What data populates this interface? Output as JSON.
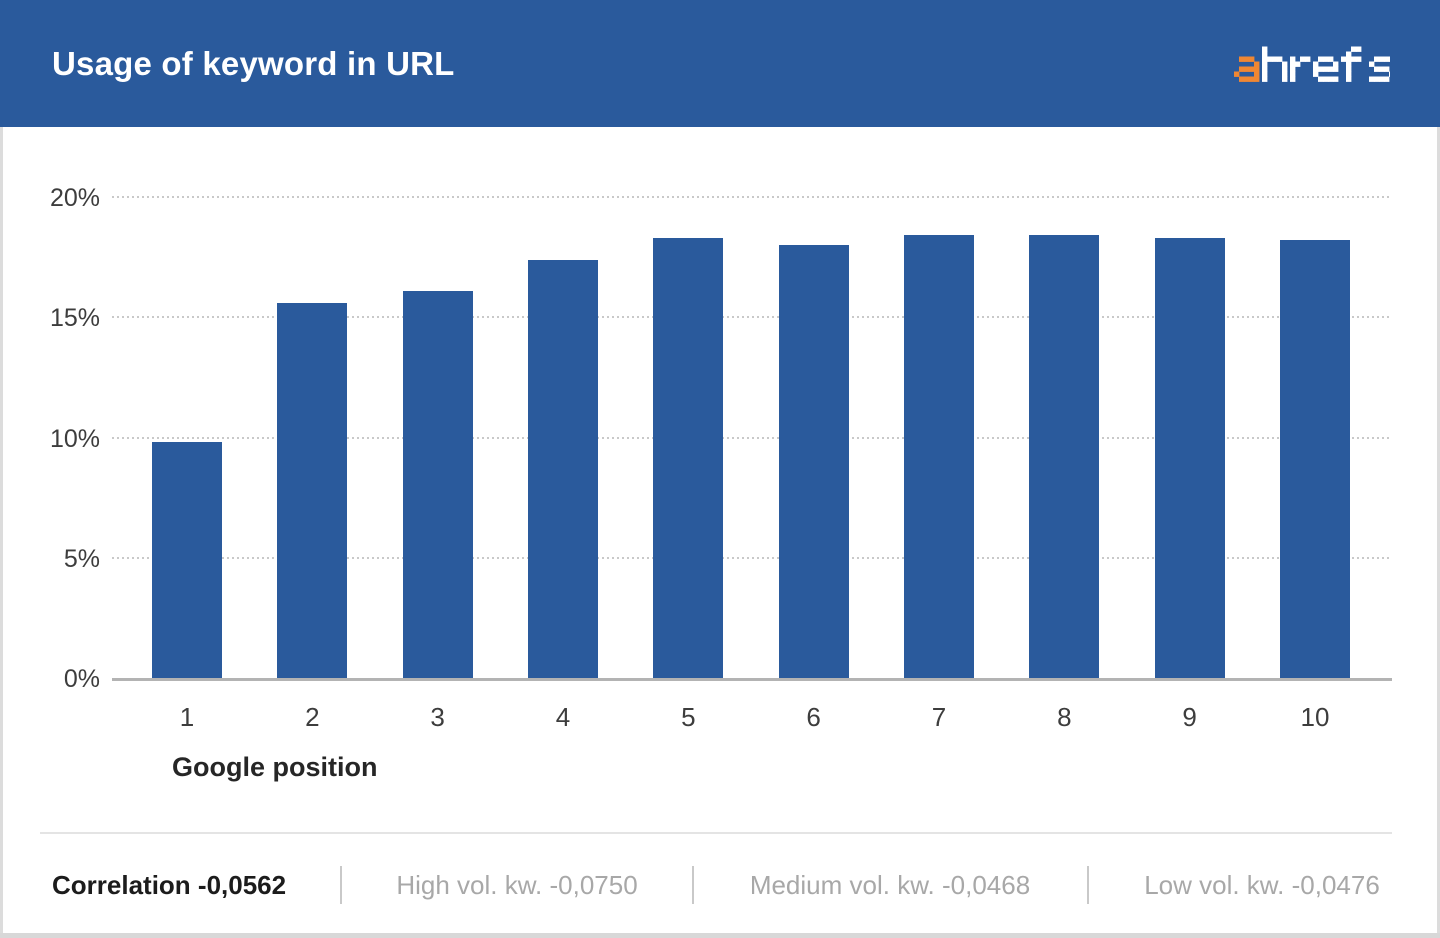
{
  "header": {
    "title": "Usage of keyword in URL",
    "brand": "ahrefs"
  },
  "chart_data": {
    "type": "bar",
    "title": "Usage of keyword in URL",
    "categories": [
      "1",
      "2",
      "3",
      "4",
      "5",
      "6",
      "7",
      "8",
      "9",
      "10"
    ],
    "values": [
      9.8,
      15.6,
      16.1,
      17.4,
      18.3,
      18.0,
      18.4,
      18.4,
      18.3,
      18.2
    ],
    "xlabel": "Google position",
    "ylabel": "",
    "ylim": [
      0,
      20
    ],
    "ytick_values": [
      0,
      5,
      10,
      15,
      20
    ],
    "ytick_labels": [
      "0%",
      "5%",
      "10%",
      "15%",
      "20%"
    ],
    "grid": "horizontal-dotted",
    "legend": "none",
    "bar_color": "#2a5a9c"
  },
  "footer": {
    "correlation": "Correlation -0,0562",
    "high": "High vol. kw. -0,0750",
    "medium": "Medium vol. kw. -0,0468",
    "low": "Low vol. kw. -0,0476"
  },
  "colors": {
    "header_bg": "#2a5a9c",
    "bar": "#2a5a9c",
    "logo_orange": "#ef8733",
    "logo_white": "#ffffff"
  }
}
